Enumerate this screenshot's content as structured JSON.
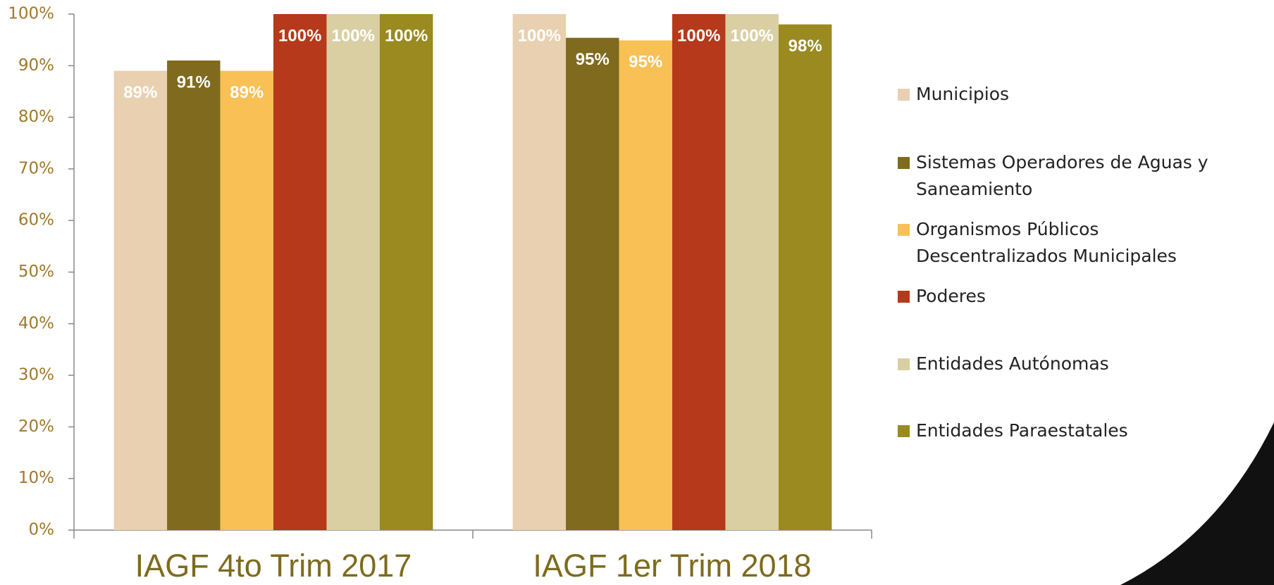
{
  "chart_data": {
    "type": "bar",
    "categories": [
      "IAGF 4to Trim 2017",
      "IAGF 1er Trim 2018"
    ],
    "series": [
      {
        "name": "Municipios",
        "color": "#e8d0b0",
        "values": [
          89,
          100
        ],
        "value_labels": [
          "89%",
          "100%"
        ]
      },
      {
        "name": "Sistemas Operadores de Aguas y Saneamiento",
        "color": "#7f6a1e",
        "values": [
          91,
          95.4
        ],
        "value_labels": [
          "91%",
          "95%"
        ]
      },
      {
        "name": "Organismos Públicos Descentralizados Municipales",
        "color": "#f9c055",
        "values": [
          89,
          94.9
        ],
        "value_labels": [
          "89%",
          "95%"
        ]
      },
      {
        "name": "Poderes",
        "color": "#b5391a",
        "values": [
          100,
          100
        ],
        "value_labels": [
          "100%",
          "100%"
        ]
      },
      {
        "name": "Entidades Autónomas",
        "color": "#d9cfa3",
        "values": [
          100,
          100
        ],
        "value_labels": [
          "100%",
          "100%"
        ]
      },
      {
        "name": "Entidades Paraestatales",
        "color": "#9a8a20",
        "values": [
          100,
          98
        ],
        "value_labels": [
          "100%",
          "98%"
        ]
      }
    ],
    "ylim": [
      0,
      100
    ],
    "yticks": [
      {
        "value": 0,
        "label": "0%"
      },
      {
        "value": 10,
        "label": "10%"
      },
      {
        "value": 20,
        "label": "20%"
      },
      {
        "value": 30,
        "label": "30%"
      },
      {
        "value": 40,
        "label": "40%"
      },
      {
        "value": 50,
        "label": "50%"
      },
      {
        "value": 60,
        "label": "60%"
      },
      {
        "value": 70,
        "label": "70%"
      },
      {
        "value": 80,
        "label": "80%"
      },
      {
        "value": 90,
        "label": "90%"
      },
      {
        "value": 100,
        "label": "100%"
      }
    ],
    "grid": false,
    "legend": "right"
  }
}
